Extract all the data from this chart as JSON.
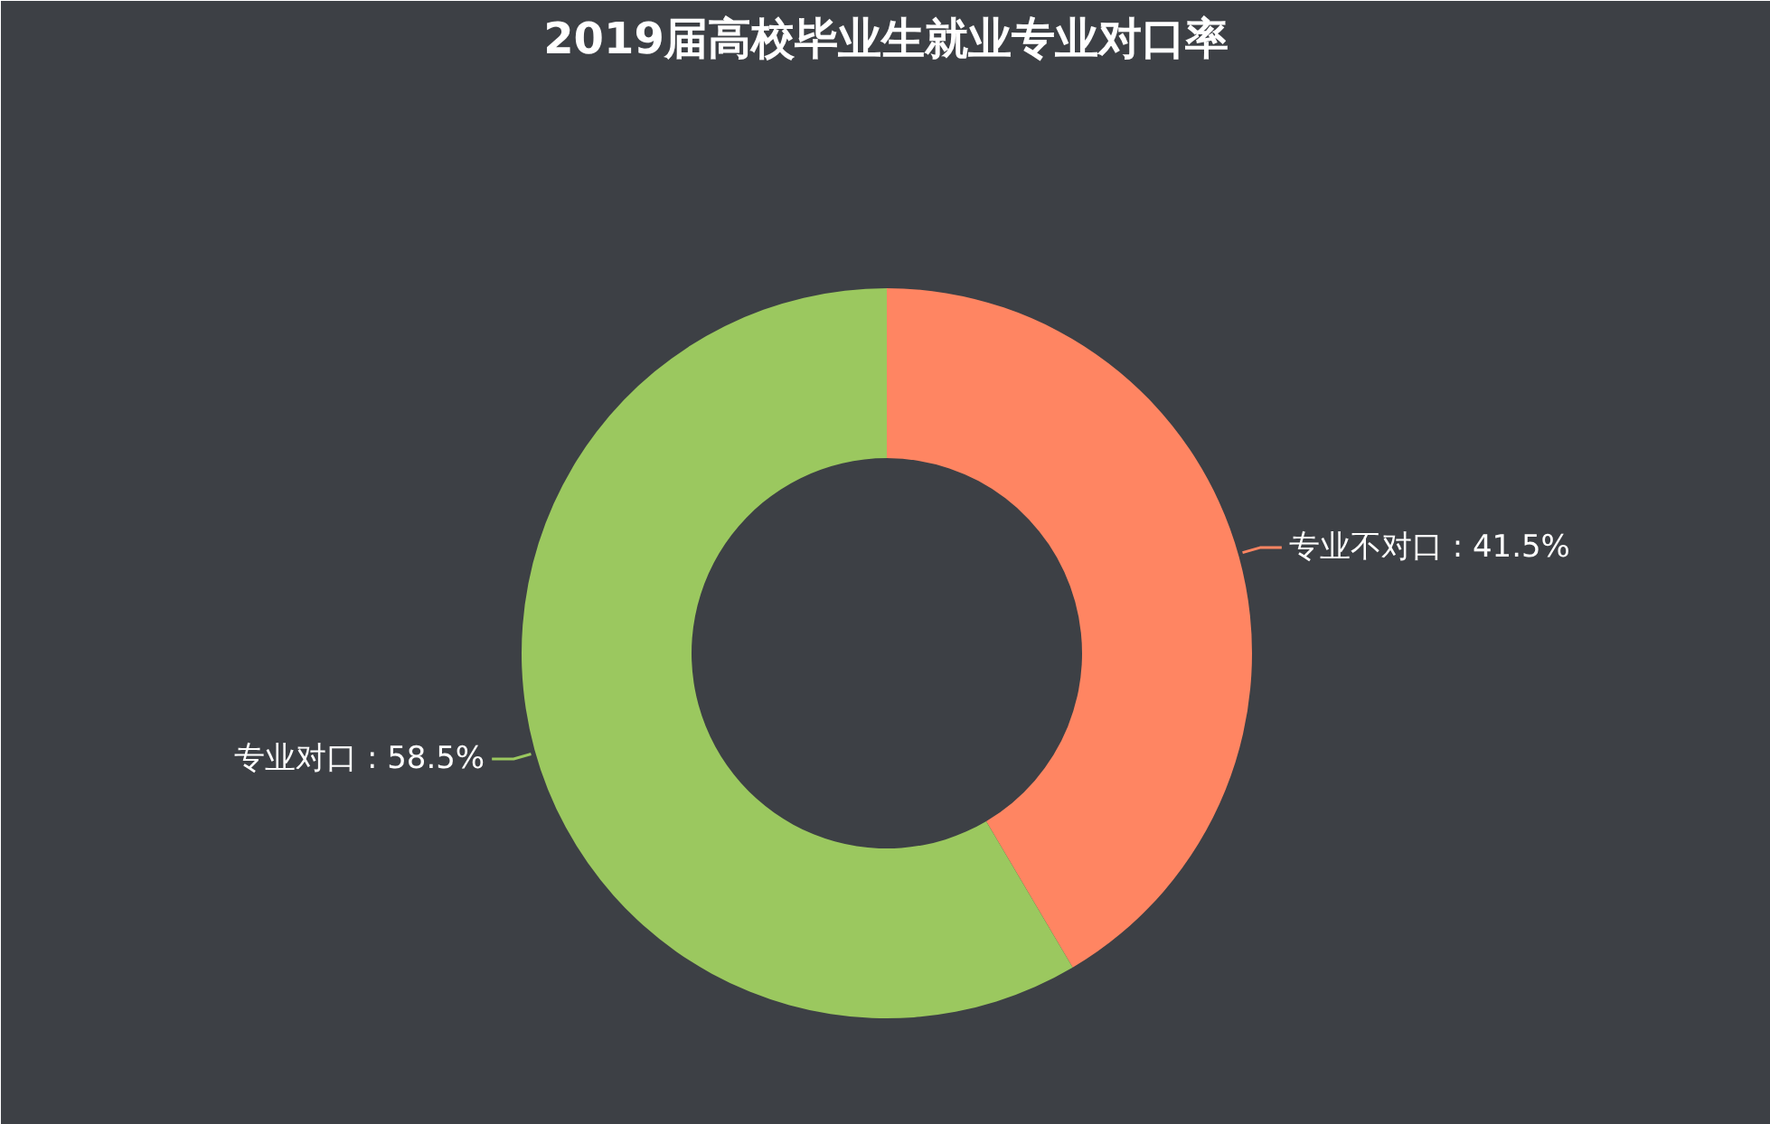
{
  "chart_data": {
    "type": "donut",
    "title": "2019届高校毕业生就业专业对口率",
    "categories": [
      "专业不对口",
      "专业对口"
    ],
    "values": [
      41.5,
      58.5
    ],
    "colors": [
      "#ff8562",
      "#9bc85f"
    ],
    "value_labels": [
      "41.5%",
      "58.5%"
    ]
  }
}
